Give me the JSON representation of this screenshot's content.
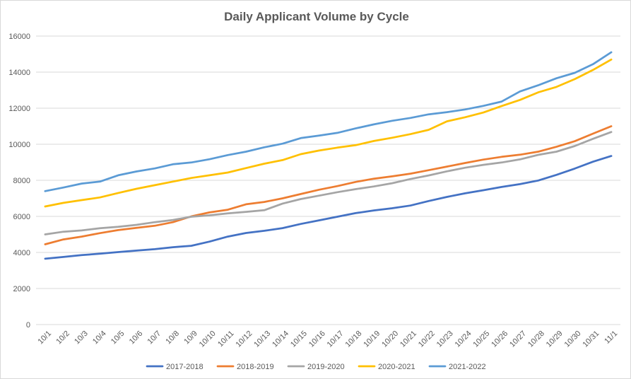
{
  "chart_data": {
    "type": "line",
    "title": "Daily Applicant Volume by Cycle",
    "xlabel": "",
    "ylabel": "",
    "ylim": [
      0,
      16000
    ],
    "yticks": [
      0,
      2000,
      4000,
      6000,
      8000,
      10000,
      12000,
      14000,
      16000
    ],
    "grid": true,
    "legend_position": "bottom",
    "x": [
      "10/1",
      "10/2",
      "10/3",
      "10/4",
      "10/5",
      "10/6",
      "10/7",
      "10/8",
      "10/9",
      "10/10",
      "10/11",
      "10/12",
      "10/13",
      "10/14",
      "10/15",
      "10/16",
      "10/17",
      "10/18",
      "10/19",
      "10/20",
      "10/21",
      "10/22",
      "10/23",
      "10/24",
      "10/25",
      "10/26",
      "10/27",
      "10/28",
      "10/29",
      "10/30",
      "10/31",
      "11/1"
    ],
    "series": [
      {
        "name": "2017-2018",
        "color": "#4472c4",
        "values": [
          3650,
          3750,
          3850,
          3930,
          4020,
          4100,
          4180,
          4290,
          4370,
          4600,
          4880,
          5080,
          5200,
          5350,
          5580,
          5780,
          5980,
          6180,
          6330,
          6450,
          6600,
          6850,
          7080,
          7280,
          7450,
          7630,
          7790,
          7990,
          8300,
          8650,
          9030,
          9350
        ]
      },
      {
        "name": "2018-2019",
        "color": "#ed7d31",
        "values": [
          4450,
          4720,
          4880,
          5070,
          5240,
          5360,
          5480,
          5680,
          6000,
          6220,
          6370,
          6670,
          6800,
          7000,
          7240,
          7480,
          7680,
          7910,
          8090,
          8220,
          8370,
          8560,
          8760,
          8960,
          9150,
          9300,
          9420,
          9590,
          9860,
          10170,
          10590,
          11000
        ]
      },
      {
        "name": "2019-2020",
        "color": "#a5a5a5",
        "values": [
          5000,
          5150,
          5220,
          5340,
          5420,
          5530,
          5680,
          5800,
          5980,
          6060,
          6170,
          6250,
          6340,
          6710,
          6960,
          7150,
          7340,
          7510,
          7660,
          7840,
          8070,
          8270,
          8500,
          8700,
          8860,
          8990,
          9160,
          9410,
          9590,
          9900,
          10300,
          10680
        ]
      },
      {
        "name": "2020-2021",
        "color": "#ffc000",
        "values": [
          6550,
          6750,
          6900,
          7050,
          7300,
          7530,
          7730,
          7930,
          8130,
          8280,
          8430,
          8680,
          8920,
          9120,
          9450,
          9650,
          9810,
          9950,
          10180,
          10360,
          10560,
          10800,
          11270,
          11500,
          11760,
          12120,
          12460,
          12880,
          13180,
          13610,
          14120,
          14700
        ]
      },
      {
        "name": "2021-2022",
        "color": "#5b9bd5",
        "values": [
          7400,
          7600,
          7820,
          7930,
          8280,
          8490,
          8660,
          8890,
          8990,
          9170,
          9400,
          9590,
          9830,
          10030,
          10340,
          10480,
          10630,
          10880,
          11100,
          11300,
          11460,
          11660,
          11780,
          11930,
          12130,
          12370,
          12930,
          13270,
          13660,
          13960,
          14440,
          15100
        ]
      }
    ]
  }
}
